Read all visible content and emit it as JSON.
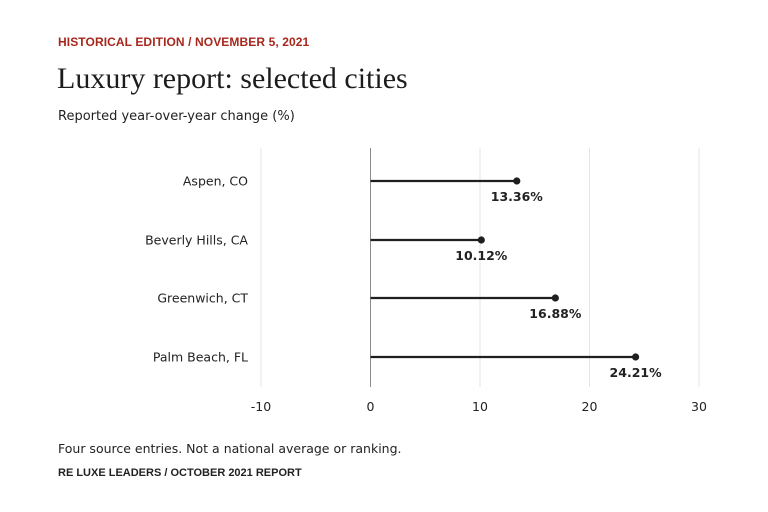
{
  "header": {
    "kicker": "HISTORICAL EDITION / NOVEMBER 5, 2021",
    "title": "Luxury report: selected cities",
    "subtitle": "Reported year-over-year change (%)"
  },
  "footer": {
    "note": "Four source entries. Not a national average or ranking.",
    "source": "RE LUXE LEADERS / OCTOBER 2021 REPORT"
  },
  "colors": {
    "kicker": "#a8271c",
    "mark": "#1f1f1f",
    "grid": "#e4e4e4",
    "zero_line": "#8a8a8a"
  },
  "chart_data": {
    "type": "bar",
    "orientation": "horizontal",
    "style": "lollipop",
    "categories": [
      "Aspen, CO",
      "Beverly Hills, CA",
      "Greenwich, CT",
      "Palm Beach, FL"
    ],
    "values": [
      13.36,
      10.12,
      16.88,
      24.21
    ],
    "value_labels": [
      "13.36%",
      "10.12%",
      "16.88%",
      "24.21%"
    ],
    "title": "Luxury report: selected cities",
    "subtitle": "Reported year-over-year change (%)",
    "xlabel": "",
    "ylabel": "",
    "xlim": [
      -10,
      30
    ],
    "xticks": [
      -10,
      0,
      10,
      20,
      30
    ],
    "xtick_labels": [
      "-10",
      "0",
      "10",
      "20",
      "30"
    ],
    "grid": true,
    "legend": "none"
  }
}
